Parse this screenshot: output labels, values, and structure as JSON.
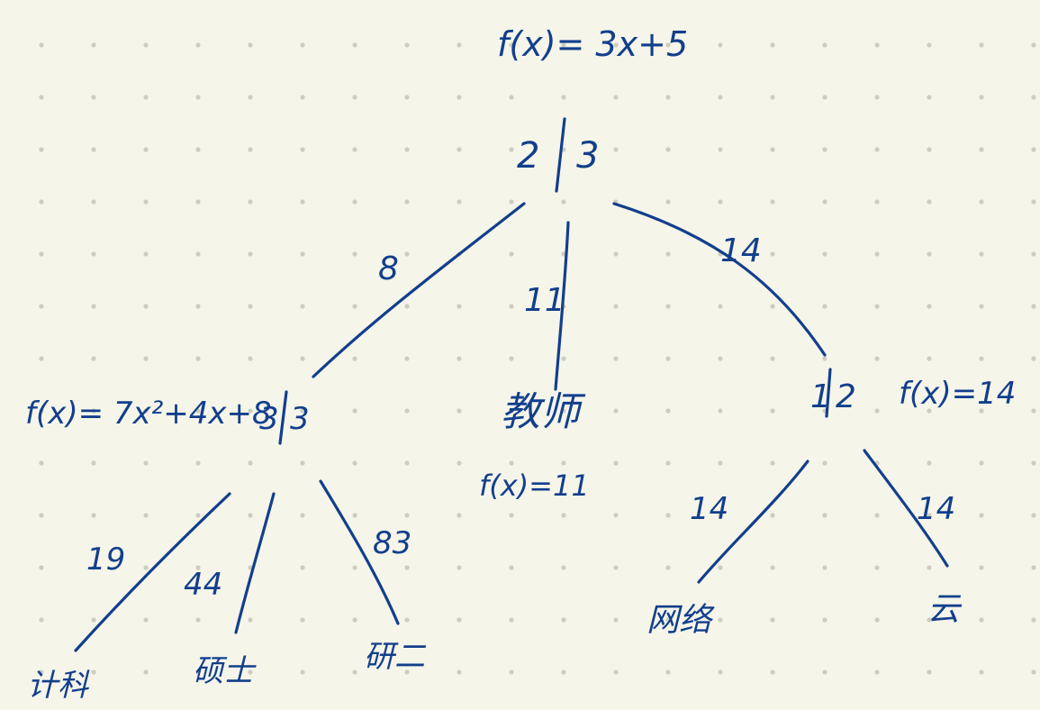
{
  "root": {
    "numerator": "2",
    "denominator": "3",
    "formula": "f(x)= 3x+5"
  },
  "edges": {
    "root_left": "8",
    "root_middle": "11",
    "root_right": "14",
    "left_c1": "19",
    "left_c2": "44",
    "left_c3": "83",
    "right_c1": "14",
    "right_c2": "14"
  },
  "left_node": {
    "numerator": "3",
    "denominator": "3",
    "formula": "f(x)= 7x²+4x+8"
  },
  "middle_node": {
    "label": "教师",
    "formula": "f(x)=11"
  },
  "right_node": {
    "numerator": "1",
    "denominator": "2",
    "formula": "f(x)=14"
  },
  "leaves": {
    "left_1": "计科",
    "left_2": "硕士",
    "left_3": "研二",
    "right_1": "网络",
    "right_2": "云"
  }
}
